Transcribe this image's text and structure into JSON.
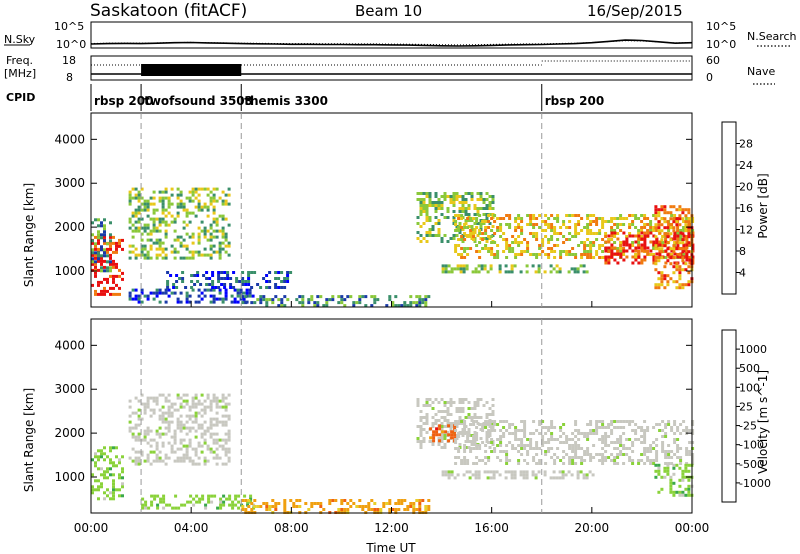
{
  "header": {
    "station": "Saskatoon (fitACF)",
    "beam": "Beam 10",
    "date": "16/Sep/2015"
  },
  "noise_panel": {
    "left_label": "N.Sky",
    "left_ticks": [
      "10^5",
      "10^0"
    ],
    "right_ticks": [
      "10^5",
      "10^0"
    ],
    "right_label": "N.Search",
    "sky_profile": [
      0.18,
      0.2,
      0.21,
      0.2,
      0.22,
      0.24,
      0.25,
      0.23,
      0.22,
      0.2,
      0.19,
      0.18,
      0.17,
      0.17,
      0.16,
      0.16,
      0.15,
      0.15,
      0.14,
      0.13,
      0.12,
      0.1,
      0.09,
      0.1,
      0.12,
      0.14,
      0.15,
      0.16,
      0.18,
      0.2,
      0.24,
      0.3,
      0.36,
      0.34,
      0.28,
      0.22,
      0.24
    ]
  },
  "freq_panel": {
    "label_line1": "Freq.",
    "label_line2": "[MHz]",
    "left_ticks": [
      "18",
      "8"
    ],
    "right_ticks": [
      "60",
      "0"
    ],
    "right_label": "Nave"
  },
  "cpid": {
    "label": "CPID",
    "segments": [
      {
        "start_hour": 0,
        "name": "rbsp 200"
      },
      {
        "start_hour": 2,
        "name": "twofsound 3503"
      },
      {
        "start_hour": 6,
        "name": "themis 3300"
      },
      {
        "start_hour": 18,
        "name": "rbsp 200"
      }
    ]
  },
  "power_panel": {
    "ylabel": "Slant Range [km]",
    "colorbar_label": "Power [dB]",
    "colorbar_ticks": [
      "28",
      "24",
      "20",
      "16",
      "12",
      "8",
      "4"
    ],
    "colors": [
      "#0000ff",
      "#1a3aa8",
      "#3a8f6a",
      "#8ac83a",
      "#e8c81a",
      "#f07a10",
      "#e81010"
    ]
  },
  "velocity_panel": {
    "ylabel": "Slant Range [km]",
    "colorbar_label": "Velocity [m s^-1]",
    "colorbar_ticks": [
      "1000",
      "500",
      "100",
      "25",
      "-25",
      "-100",
      "-500",
      "-1000"
    ],
    "colors": [
      "#1e3cb4",
      "#2a7f8a",
      "#3aa84a",
      "#8ad23a",
      "#c8c8c0",
      "#e8d02a",
      "#f0a010",
      "#f06010",
      "#e81010"
    ],
    "ground_scatter_color": "#c8c8c0"
  },
  "axes": {
    "y_ticks": [
      "1000",
      "2000",
      "3000",
      "4000"
    ],
    "x_ticks": [
      "00:00",
      "04:00",
      "08:00",
      "12:00",
      "16:00",
      "20:00",
      "00:00"
    ],
    "xlabel": "Time UT"
  },
  "chart_data": [
    {
      "type": "heatmap",
      "title": "Saskatoon (fitACF) Beam 10 16/Sep/2015",
      "xlabel": "Time UT",
      "ylabel": "Slant Range [km]",
      "zlabel": "Power [dB]",
      "xlim": [
        "00:00",
        "24:00"
      ],
      "ylim": [
        180,
        4600
      ],
      "zticks": [
        4,
        8,
        12,
        16,
        20,
        24,
        28
      ],
      "bands": [
        {
          "t0": 0.0,
          "t1": 1.3,
          "r0": 500,
          "r1": 1800,
          "level": 28
        },
        {
          "t0": 0.0,
          "t1": 0.8,
          "r0": 1000,
          "r1": 2200,
          "level": 12
        },
        {
          "t0": 1.5,
          "t1": 5.5,
          "r0": 1300,
          "r1": 2900,
          "level": 16
        },
        {
          "t0": 1.5,
          "t1": 6.5,
          "r0": 300,
          "r1": 600,
          "level": 8
        },
        {
          "t0": 3.0,
          "t1": 8.0,
          "r0": 600,
          "r1": 1000,
          "level": 8
        },
        {
          "t0": 6.0,
          "t1": 13.5,
          "r0": 200,
          "r1": 450,
          "level": 12
        },
        {
          "t0": 13.0,
          "t1": 16.0,
          "r0": 1700,
          "r1": 2800,
          "level": 16
        },
        {
          "t0": 14.5,
          "t1": 24.0,
          "r0": 1300,
          "r1": 2300,
          "level": 20
        },
        {
          "t0": 20.5,
          "t1": 24.0,
          "r0": 1200,
          "r1": 1900,
          "level": 28
        },
        {
          "t0": 14.0,
          "t1": 20.0,
          "r0": 950,
          "r1": 1150,
          "level": 16
        },
        {
          "t0": 22.5,
          "t1": 24.0,
          "r0": 600,
          "r1": 2500,
          "level": 24
        }
      ]
    },
    {
      "type": "heatmap",
      "title": "Saskatoon (fitACF) Beam 10 16/Sep/2015",
      "xlabel": "Time UT",
      "ylabel": "Slant Range [km]",
      "zlabel": "Velocity [m s^-1]",
      "xlim": [
        "00:00",
        "24:00"
      ],
      "ylim": [
        180,
        4600
      ],
      "zticks": [
        1000,
        500,
        100,
        25,
        -25,
        -100,
        -500,
        -1000
      ],
      "bands": [
        {
          "t0": 0.0,
          "t1": 1.2,
          "r0": 500,
          "r1": 1700,
          "level": 100
        },
        {
          "t0": 1.5,
          "t1": 5.5,
          "r0": 1300,
          "r1": 2900,
          "level": 0
        },
        {
          "t0": 2.0,
          "t1": 6.5,
          "r0": 300,
          "r1": 600,
          "level": 100
        },
        {
          "t0": 6.0,
          "t1": 13.5,
          "r0": 200,
          "r1": 500,
          "level": -100
        },
        {
          "t0": 13.0,
          "t1": 16.0,
          "r0": 1700,
          "r1": 2800,
          "level": 0
        },
        {
          "t0": 13.5,
          "t1": 14.5,
          "r0": 1800,
          "r1": 2200,
          "level": -500
        },
        {
          "t0": 14.5,
          "t1": 24.0,
          "r0": 1300,
          "r1": 2300,
          "level": 0
        },
        {
          "t0": 14.0,
          "t1": 20.0,
          "r0": 950,
          "r1": 1150,
          "level": 0
        },
        {
          "t0": 22.5,
          "t1": 24.0,
          "r0": 600,
          "r1": 1300,
          "level": 100
        }
      ]
    }
  ]
}
